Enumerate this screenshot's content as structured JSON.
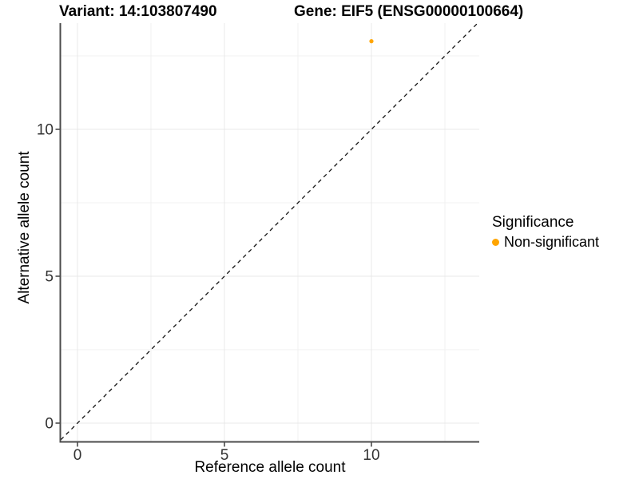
{
  "titles": {
    "variant": "Variant: 14:103807490",
    "gene": "Gene: EIF5 (ENSG00000100664)"
  },
  "legend": {
    "title": "Significance",
    "items": [
      {
        "label": "Non-significant",
        "color": "#FFA500"
      }
    ]
  },
  "chart_data": {
    "type": "scatter",
    "title": "Variant: 14:103807490 — Gene: EIF5 (ENSG00000100664)",
    "xlabel": "Reference allele count",
    "ylabel": "Alternative allele count",
    "xlim": [
      -0.57,
      13.67
    ],
    "ylim": [
      -0.63,
      13.62
    ],
    "x_major_ticks": [
      0,
      5,
      10
    ],
    "y_major_ticks": [
      0,
      5,
      10
    ],
    "x_minor_ticks": [
      2.5,
      7.5,
      12.5
    ],
    "y_minor_ticks": [
      2.5,
      7.5,
      12.5
    ],
    "grid": true,
    "legend_position": "right",
    "series": [
      {
        "name": "Non-significant",
        "color": "#FFA500",
        "points": [
          {
            "x": 10,
            "y": 13
          }
        ]
      }
    ],
    "reference_line": {
      "type": "identity",
      "style": "dashed",
      "color": "#111111"
    }
  },
  "colors": {
    "axis_line": "#4b4b4b",
    "tick_label": "#333333",
    "grid_major": "#e9e9e9",
    "grid_minor": "#f1f1f1",
    "point": "#FFA500",
    "background": "#ffffff"
  }
}
